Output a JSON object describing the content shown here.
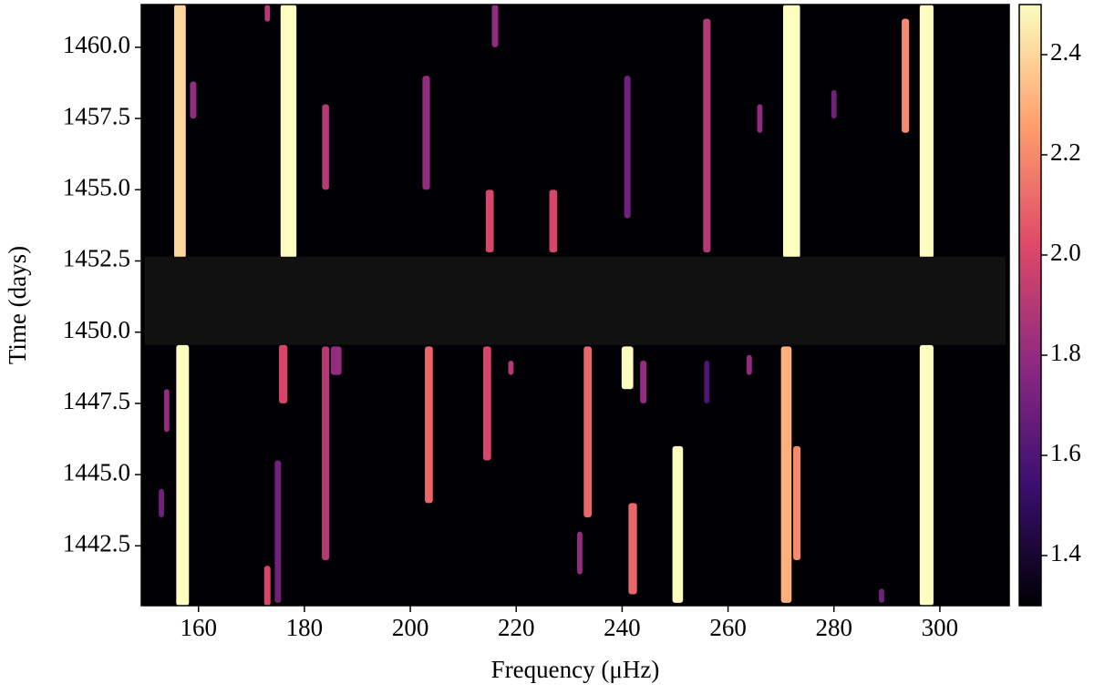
{
  "chart_data": {
    "type": "spectrogram",
    "xlabel": "Frequency (μHz)",
    "ylabel": "Time (days)",
    "xlim": [
      149.2,
      313.1
    ],
    "ylim": [
      1440.4,
      1461.5
    ],
    "xticks": [
      160,
      180,
      200,
      220,
      240,
      260,
      280,
      300
    ],
    "yticks": [
      {
        "value": 1442.5,
        "label": "1442.5"
      },
      {
        "value": 1445,
        "label": "1445.0"
      },
      {
        "value": 1447.5,
        "label": "1447.5"
      },
      {
        "value": 1450,
        "label": "1450.0"
      },
      {
        "value": 1452.5,
        "label": "1452.5"
      },
      {
        "value": 1455,
        "label": "1455.0"
      },
      {
        "value": 1457.5,
        "label": "1457.5"
      },
      {
        "value": 1460,
        "label": "1460.0"
      }
    ],
    "clim": [
      1.3,
      2.5
    ],
    "cticks": [
      1.4,
      1.6,
      1.8,
      {
        "value": 2.0,
        "label": "2.0"
      },
      2.2,
      2.4
    ],
    "colormap": [
      "#000004",
      "#3b0f70",
      "#8c2981",
      "#de4968",
      "#fe9f6d",
      "#fcfdbf"
    ],
    "gap": {
      "t0": 1449.55,
      "t1": 1452.65,
      "f0": 149.8,
      "f1": 312.4,
      "color": "#111111"
    },
    "ridges": [
      {
        "freq": 156.5,
        "width": 2.2,
        "t0": 1452.6,
        "t1": 1461.5,
        "value": 2.4
      },
      {
        "freq": 177,
        "width": 3,
        "t0": 1452.6,
        "t1": 1461.5,
        "value": 2.5
      },
      {
        "freq": 159,
        "width": 1.2,
        "t0": 1457.5,
        "t1": 1458.8,
        "value": 1.8
      },
      {
        "freq": 173,
        "width": 1,
        "t0": 1460.9,
        "t1": 1461.5,
        "value": 1.9
      },
      {
        "freq": 184,
        "width": 1.3,
        "t0": 1455,
        "t1": 1458,
        "value": 1.9
      },
      {
        "freq": 203,
        "width": 1.4,
        "t0": 1455,
        "t1": 1459,
        "value": 1.8
      },
      {
        "freq": 215,
        "width": 1.5,
        "t0": 1452.8,
        "t1": 1455,
        "value": 2.0
      },
      {
        "freq": 216,
        "width": 1.2,
        "t0": 1460,
        "t1": 1461.5,
        "value": 1.8
      },
      {
        "freq": 227,
        "width": 1.5,
        "t0": 1452.8,
        "t1": 1455,
        "value": 2.0
      },
      {
        "freq": 241,
        "width": 1.2,
        "t0": 1454,
        "t1": 1459,
        "value": 1.7
      },
      {
        "freq": 256,
        "width": 1.4,
        "t0": 1452.8,
        "t1": 1461,
        "value": 1.9
      },
      {
        "freq": 266,
        "width": 1,
        "t0": 1457,
        "t1": 1458,
        "value": 1.8
      },
      {
        "freq": 272,
        "width": 3.2,
        "t0": 1452.6,
        "t1": 1461.5,
        "value": 2.5
      },
      {
        "freq": 280,
        "width": 1,
        "t0": 1457.5,
        "t1": 1458.5,
        "value": 1.7
      },
      {
        "freq": 293.5,
        "width": 1.4,
        "t0": 1457,
        "t1": 1461,
        "value": 2.2
      },
      {
        "freq": 297.5,
        "width": 2.6,
        "t0": 1452.6,
        "t1": 1461.5,
        "value": 2.5
      },
      {
        "freq": 157,
        "width": 2.4,
        "t0": 1440.4,
        "t1": 1449.55,
        "value": 2.5
      },
      {
        "freq": 153,
        "width": 1,
        "t0": 1443.5,
        "t1": 1444.5,
        "value": 1.7
      },
      {
        "freq": 154,
        "width": 1,
        "t0": 1446.5,
        "t1": 1448,
        "value": 1.8
      },
      {
        "freq": 176,
        "width": 1.6,
        "t0": 1447.5,
        "t1": 1449.55,
        "value": 2.0
      },
      {
        "freq": 175,
        "width": 1.2,
        "t0": 1440.5,
        "t1": 1445.5,
        "value": 1.7
      },
      {
        "freq": 173,
        "width": 1.2,
        "t0": 1440.4,
        "t1": 1441.8,
        "value": 2.0
      },
      {
        "freq": 184,
        "width": 1.4,
        "t0": 1442,
        "t1": 1449.5,
        "value": 1.9
      },
      {
        "freq": 186,
        "width": 2,
        "t0": 1448.5,
        "t1": 1449.5,
        "value": 1.8
      },
      {
        "freq": 203.5,
        "width": 1.5,
        "t0": 1444,
        "t1": 1449.5,
        "value": 2.1
      },
      {
        "freq": 214.5,
        "width": 1.5,
        "t0": 1445.5,
        "t1": 1449.5,
        "value": 2.0
      },
      {
        "freq": 219,
        "width": 1,
        "t0": 1448.5,
        "t1": 1449,
        "value": 1.9
      },
      {
        "freq": 233.5,
        "width": 1.5,
        "t0": 1443.5,
        "t1": 1449.5,
        "value": 2.1
      },
      {
        "freq": 232,
        "width": 1,
        "t0": 1441.5,
        "t1": 1443,
        "value": 1.8
      },
      {
        "freq": 241,
        "width": 2.2,
        "t0": 1448,
        "t1": 1449.5,
        "value": 2.5
      },
      {
        "freq": 242,
        "width": 1.6,
        "t0": 1440.8,
        "t1": 1444,
        "value": 2.1
      },
      {
        "freq": 244,
        "width": 1.2,
        "t0": 1447.5,
        "t1": 1449,
        "value": 1.8
      },
      {
        "freq": 250.5,
        "width": 2,
        "t0": 1440.5,
        "t1": 1446,
        "value": 2.5
      },
      {
        "freq": 256,
        "width": 1,
        "t0": 1447.5,
        "t1": 1449,
        "value": 1.6
      },
      {
        "freq": 264,
        "width": 1,
        "t0": 1448.5,
        "t1": 1449.2,
        "value": 1.8
      },
      {
        "freq": 271,
        "width": 2,
        "t0": 1440.5,
        "t1": 1449.5,
        "value": 2.3
      },
      {
        "freq": 273,
        "width": 1.4,
        "t0": 1442,
        "t1": 1446,
        "value": 2.2
      },
      {
        "freq": 289,
        "width": 1,
        "t0": 1440.5,
        "t1": 1441,
        "value": 1.7
      },
      {
        "freq": 297.5,
        "width": 2.6,
        "t0": 1440.4,
        "t1": 1449.55,
        "value": 2.5
      }
    ]
  }
}
